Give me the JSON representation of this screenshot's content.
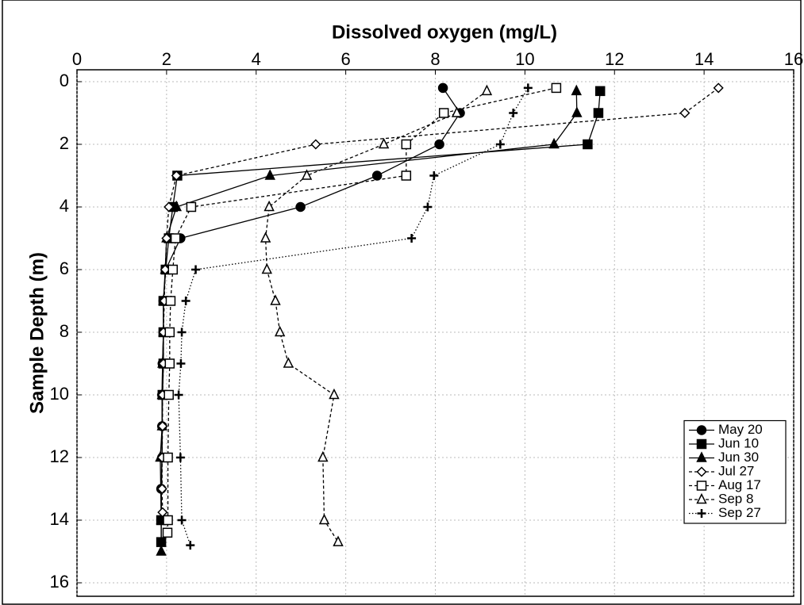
{
  "chart_data": {
    "type": "line",
    "xlabel": "Dissolved oxygen (mg/L)",
    "ylabel": "Sample Depth (m)",
    "xlim": [
      0,
      16
    ],
    "xticks": [
      0,
      2,
      4,
      6,
      8,
      10,
      12,
      14,
      16
    ],
    "ylim": [
      0,
      16
    ],
    "yticks": [
      0,
      2,
      4,
      6,
      8,
      10,
      12,
      14,
      16
    ],
    "y_inverted": true,
    "x_axis_top": true,
    "grid": true,
    "legend": "lower right",
    "series": [
      {
        "name": "May 20",
        "color": "#000000",
        "marker": "circle",
        "dash": "solid",
        "x": [
          8.17,
          8.55,
          8.09,
          6.7,
          4.99,
          2.31,
          1.98,
          1.93,
          1.93,
          1.91,
          1.9,
          1.9,
          1.9,
          1.88,
          1.88
        ],
        "y": [
          0.2,
          1,
          2,
          3,
          4,
          5,
          6,
          7,
          8,
          9,
          10,
          11,
          12,
          13,
          14
        ]
      },
      {
        "name": "Jun 10",
        "color": "#000000",
        "marker": "square",
        "dash": "solid",
        "x": [
          11.68,
          11.64,
          11.4,
          2.24,
          2.14,
          2.05,
          1.98,
          1.93,
          1.93,
          1.93,
          1.91,
          1.88,
          1.88
        ],
        "y": [
          0.3,
          1,
          2,
          3,
          4,
          5,
          6,
          7,
          8,
          9,
          10,
          14,
          14.7
        ]
      },
      {
        "name": "Jun 30",
        "color": "#000000",
        "marker": "triangle",
        "dash": "solid",
        "x": [
          11.15,
          11.16,
          10.65,
          4.31,
          2.22,
          2.0,
          1.97,
          1.93,
          1.93,
          1.91,
          1.9,
          1.9,
          1.86,
          1.88,
          1.88
        ],
        "y": [
          0.3,
          1,
          2,
          3,
          4,
          5,
          6,
          7,
          8,
          9,
          10,
          11,
          12,
          14,
          15
        ]
      },
      {
        "name": "Jul 27",
        "color": "#000000",
        "marker": "diamond-open",
        "dash": "dashed",
        "x": [
          14.32,
          13.57,
          5.33,
          2.22,
          2.05,
          2.0,
          1.97,
          1.95,
          1.93,
          1.93,
          1.91,
          1.91,
          1.9,
          1.9,
          1.91
        ],
        "y": [
          0.2,
          1,
          2,
          3,
          4,
          5,
          6,
          7,
          8,
          9,
          10,
          11,
          12,
          13,
          13.75
        ]
      },
      {
        "name": "Aug 17",
        "color": "#000000",
        "marker": "square-open",
        "dash": "dashed",
        "x": [
          10.7,
          8.19,
          7.35,
          7.35,
          2.55,
          2.2,
          2.14,
          2.09,
          2.07,
          2.07,
          2.05,
          2.03,
          2.03,
          2.02
        ],
        "y": [
          0.2,
          1,
          2,
          3,
          4,
          5,
          6,
          7,
          8,
          9,
          10,
          12,
          14,
          14.4
        ]
      },
      {
        "name": "Sep 8",
        "color": "#000000",
        "marker": "triangle-open",
        "dash": "dashed",
        "x": [
          9.15,
          8.48,
          6.85,
          5.13,
          4.29,
          4.21,
          4.24,
          4.43,
          4.53,
          4.72,
          5.74,
          5.49,
          5.52,
          5.83
        ],
        "y": [
          0.3,
          1,
          2,
          3,
          4,
          5,
          6,
          7,
          8,
          9,
          10,
          12,
          14,
          14.7
        ]
      },
      {
        "name": "Sep 27",
        "color": "#000000",
        "marker": "plus",
        "dash": "dotted",
        "x": [
          10.07,
          9.74,
          9.45,
          7.97,
          7.83,
          7.47,
          2.65,
          2.43,
          2.34,
          2.32,
          2.27,
          2.31,
          2.34,
          2.53
        ],
        "y": [
          0.2,
          1,
          2,
          3,
          4,
          5,
          6,
          7,
          8,
          9,
          10,
          12,
          14,
          14.8
        ]
      }
    ]
  }
}
